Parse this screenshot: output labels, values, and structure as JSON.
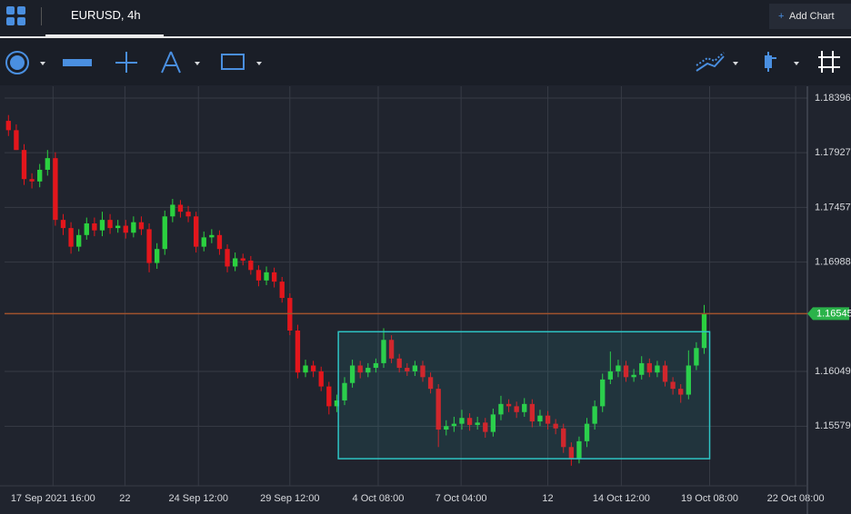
{
  "header": {
    "symbol": "EURUSD, 4h",
    "add_chart": "Add Chart"
  },
  "chart_data": {
    "type": "candlestick",
    "up_color": "#2bd13f",
    "down_color": "#e3161c",
    "grid": true,
    "open": [
      1.182,
      1.1812,
      1.1795,
      1.177,
      1.1768,
      1.1778,
      1.1788,
      1.1735,
      1.1728,
      1.1712,
      1.1722,
      1.1732,
      1.1726,
      1.1735,
      1.1728,
      1.173,
      1.1724,
      1.1733,
      1.1727,
      1.1698,
      1.171,
      1.1738,
      1.1748,
      1.1742,
      1.1738,
      1.1712,
      1.172,
      1.1722,
      1.171,
      1.1695,
      1.1702,
      1.17,
      1.1692,
      1.1683,
      1.169,
      1.1682,
      1.1668,
      1.164,
      1.1604,
      1.161,
      1.1605,
      1.1592,
      1.1575,
      1.158,
      1.1595,
      1.161,
      1.1604,
      1.1608,
      1.1612,
      1.1632,
      1.1616,
      1.1608,
      1.1605,
      1.161,
      1.16,
      1.159,
      1.1555,
      1.1558,
      1.156,
      1.1565,
      1.1559,
      1.1561,
      1.1553,
      1.1568,
      1.1577,
      1.1575,
      1.157,
      1.1577,
      1.1562,
      1.1567,
      1.156,
      1.1556,
      1.154,
      1.153,
      1.1545,
      1.156,
      1.1575,
      1.1598,
      1.1605,
      1.161,
      1.16,
      1.1602,
      1.1612,
      1.1604,
      1.161,
      1.1596,
      1.159,
      1.1585,
      1.161,
      1.1625
    ],
    "high": [
      1.1825,
      1.1817,
      1.18,
      1.1775,
      1.1783,
      1.1795,
      1.1793,
      1.174,
      1.1733,
      1.1727,
      1.1737,
      1.1737,
      1.1742,
      1.174,
      1.1735,
      1.1735,
      1.1738,
      1.1738,
      1.1732,
      1.1715,
      1.1743,
      1.1753,
      1.1752,
      1.1747,
      1.1742,
      1.1725,
      1.1727,
      1.1726,
      1.1714,
      1.1707,
      1.1706,
      1.1704,
      1.1696,
      1.1695,
      1.1694,
      1.1686,
      1.1672,
      1.1645,
      1.1615,
      1.1614,
      1.1609,
      1.1596,
      1.1585,
      1.16,
      1.1615,
      1.1614,
      1.1612,
      1.1616,
      1.1642,
      1.1636,
      1.162,
      1.1612,
      1.1614,
      1.1614,
      1.1604,
      1.1594,
      1.1563,
      1.1566,
      1.1572,
      1.1569,
      1.1566,
      1.1565,
      1.1573,
      1.1584,
      1.1581,
      1.1579,
      1.1582,
      1.1581,
      1.1572,
      1.1571,
      1.1564,
      1.156,
      1.1544,
      1.1549,
      1.1565,
      1.158,
      1.1603,
      1.1622,
      1.1615,
      1.1614,
      1.1607,
      1.1618,
      1.1616,
      1.1614,
      1.1614,
      1.16,
      1.1594,
      1.1623,
      1.163,
      1.1662
    ],
    "low": [
      1.1807,
      1.1795,
      1.1765,
      1.1762,
      1.1763,
      1.1773,
      1.173,
      1.1722,
      1.1706,
      1.1708,
      1.1718,
      1.1721,
      1.1721,
      1.1723,
      1.1724,
      1.1719,
      1.172,
      1.1722,
      1.169,
      1.1693,
      1.1705,
      1.1733,
      1.1737,
      1.1733,
      1.1707,
      1.1708,
      1.1715,
      1.1705,
      1.169,
      1.1691,
      1.1696,
      1.1688,
      1.1678,
      1.1679,
      1.1677,
      1.1664,
      1.1636,
      1.1599,
      1.16,
      1.16,
      1.1588,
      1.1568,
      1.157,
      1.1576,
      1.1591,
      1.1599,
      1.16,
      1.1604,
      1.1608,
      1.1612,
      1.1604,
      1.1601,
      1.1601,
      1.1596,
      1.1586,
      1.154,
      1.155,
      1.1553,
      1.1555,
      1.1554,
      1.1555,
      1.1548,
      1.1549,
      1.1563,
      1.157,
      1.1565,
      1.1566,
      1.1557,
      1.1558,
      1.1555,
      1.1551,
      1.1535,
      1.1524,
      1.1526,
      1.154,
      1.1555,
      1.157,
      1.1594,
      1.16,
      1.1596,
      1.1596,
      1.1598,
      1.16,
      1.16,
      1.1592,
      1.1585,
      1.1578,
      1.1581,
      1.1606,
      1.162
    ],
    "close": [
      1.1812,
      1.1795,
      1.177,
      1.1768,
      1.1778,
      1.1788,
      1.1735,
      1.1728,
      1.1712,
      1.1722,
      1.1732,
      1.1726,
      1.1735,
      1.1728,
      1.173,
      1.1724,
      1.1733,
      1.1727,
      1.1698,
      1.171,
      1.1738,
      1.1748,
      1.1742,
      1.1738,
      1.1712,
      1.172,
      1.1722,
      1.171,
      1.1695,
      1.1702,
      1.17,
      1.1692,
      1.1683,
      1.169,
      1.1682,
      1.1668,
      1.164,
      1.1604,
      1.161,
      1.1605,
      1.1592,
      1.1575,
      1.158,
      1.1595,
      1.161,
      1.1604,
      1.1608,
      1.1612,
      1.1632,
      1.1616,
      1.1608,
      1.1605,
      1.161,
      1.16,
      1.159,
      1.1555,
      1.1558,
      1.156,
      1.1565,
      1.1559,
      1.1561,
      1.1553,
      1.1568,
      1.1577,
      1.1575,
      1.157,
      1.1577,
      1.1562,
      1.1567,
      1.156,
      1.1556,
      1.154,
      1.153,
      1.1545,
      1.156,
      1.1575,
      1.1598,
      1.1605,
      1.161,
      1.16,
      1.1602,
      1.1612,
      1.1604,
      1.161,
      1.1596,
      1.159,
      1.1585,
      1.161,
      1.1625,
      1.16545
    ],
    "xlim": [
      -0.5,
      102.2
    ],
    "xticks": [
      {
        "value": 5.7,
        "label": "17 Sep 2021 16:00"
      },
      {
        "value": 14.9,
        "label": "22"
      },
      {
        "value": 24.3,
        "label": "24 Sep 12:00"
      },
      {
        "value": 36,
        "label": "29 Sep 12:00"
      },
      {
        "value": 47.3,
        "label": "4 Oct 08:00"
      },
      {
        "value": 57.9,
        "label": "7 Oct 04:00"
      },
      {
        "value": 69,
        "label": "12"
      },
      {
        "value": 78.4,
        "label": "14 Oct 12:00"
      },
      {
        "value": 89.7,
        "label": "19 Oct 08:00"
      },
      {
        "value": 100.7,
        "label": "22 Oct 08:00"
      }
    ],
    "ylim": [
      1.15067,
      1.18497
    ],
    "yticks": [
      1.18396,
      1.17927,
      1.17457,
      1.16988,
      1.16049,
      1.15579
    ],
    "current_price": 1.16545,
    "current_price_color": "#2bb34a",
    "price_line_color": "#a0522d",
    "rectangle": {
      "x": [
        42.2,
        89.7
      ],
      "y": [
        1.153,
        1.1639
      ],
      "color": "#2ec4c4"
    }
  }
}
